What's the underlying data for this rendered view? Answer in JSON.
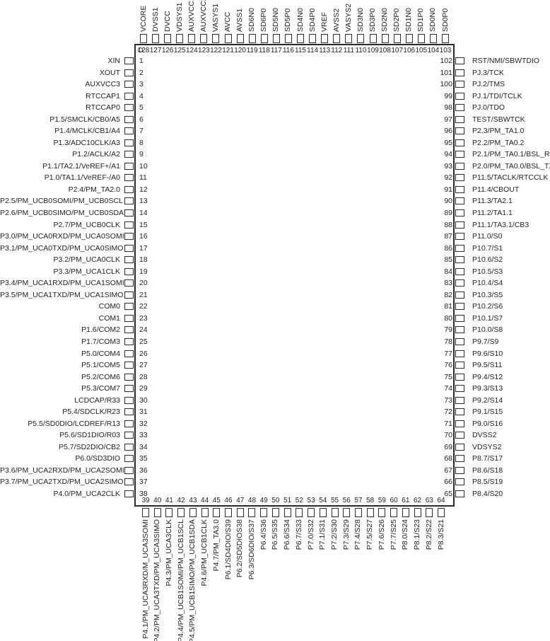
{
  "diagram": {
    "kind": "microcontroller-pinout",
    "background_color": "#ffffff",
    "line_color": "#2b2b2b",
    "pin1_marker": "circle"
  },
  "chip": {
    "top_pins": [
      {
        "num": "128",
        "label": "VCORE"
      },
      {
        "num": "127",
        "label": "DVSS1"
      },
      {
        "num": "126",
        "label": "DVCC"
      },
      {
        "num": "125",
        "label": "VDSYS1"
      },
      {
        "num": "124",
        "label": "AUXVCC1"
      },
      {
        "num": "123",
        "label": "AUXVCC2"
      },
      {
        "num": "122",
        "label": "VASYS1"
      },
      {
        "num": "121",
        "label": "AVCC"
      },
      {
        "num": "120",
        "label": "AVSS1"
      },
      {
        "num": "119",
        "label": "SD6N0"
      },
      {
        "num": "118",
        "label": "SD6P0"
      },
      {
        "num": "117",
        "label": "SD5N0"
      },
      {
        "num": "116",
        "label": "SD5P0"
      },
      {
        "num": "115",
        "label": "SD4N0"
      },
      {
        "num": "114",
        "label": "SD4P0"
      },
      {
        "num": "113",
        "label": "VREF"
      },
      {
        "num": "112",
        "label": "AVSS2"
      },
      {
        "num": "111",
        "label": "VASYS2"
      },
      {
        "num": "110",
        "label": "SD3N0"
      },
      {
        "num": "109",
        "label": "SD3P0"
      },
      {
        "num": "108",
        "label": "SD2N0"
      },
      {
        "num": "107",
        "label": "SD2P0"
      },
      {
        "num": "106",
        "label": "SD1N0"
      },
      {
        "num": "105",
        "label": "SD1P0"
      },
      {
        "num": "104",
        "label": "SD0N0"
      },
      {
        "num": "103",
        "label": "SD0P0"
      }
    ],
    "left_pins": [
      {
        "num": "1",
        "label": "XIN"
      },
      {
        "num": "2",
        "label": "XOUT"
      },
      {
        "num": "3",
        "label": "AUXVCC3"
      },
      {
        "num": "4",
        "label": "RTCCAP1"
      },
      {
        "num": "5",
        "label": "RTCCAP0"
      },
      {
        "num": "6",
        "label": "P1.5/SMCLK/CB0/A5"
      },
      {
        "num": "7",
        "label": "P1.4/MCLK/CB1/A4"
      },
      {
        "num": "8",
        "label": "P1.3/ADC10CLK/A3"
      },
      {
        "num": "9",
        "label": "P1.2/ACLK/A2"
      },
      {
        "num": "10",
        "label": "P1.1/TA2.1/VeREF+/A1"
      },
      {
        "num": "11",
        "label": "P1.0/TA1.1/VeREF-/A0"
      },
      {
        "num": "12",
        "label": "P2.4/PM_TA2.0"
      },
      {
        "num": "13",
        "label": "P2.5/PM_UCB0SOMI/PM_UCB0SCL"
      },
      {
        "num": "14",
        "label": "P2.6/PM_UCB0SIMO/PM_UCB0SDA"
      },
      {
        "num": "15",
        "label": "P2.7/PM_UCB0CLK"
      },
      {
        "num": "16",
        "label": "P3.0/PM_UCA0RXD/PM_UCA0SOMI"
      },
      {
        "num": "17",
        "label": "P3.1/PM_UCA0TXD/PM_UCA0SIMO"
      },
      {
        "num": "18",
        "label": "P3.2/PM_UCA0CLK"
      },
      {
        "num": "19",
        "label": "P3.3/PM_UCA1CLK"
      },
      {
        "num": "20",
        "label": "P3.4/PM_UCA1RXD/PM_UCA1SOMI"
      },
      {
        "num": "21",
        "label": "P3.5/PM_UCA1TXD/PM_UCA1SIMO"
      },
      {
        "num": "22",
        "label": "COM0"
      },
      {
        "num": "23",
        "label": "COM1"
      },
      {
        "num": "24",
        "label": "P1.6/COM2"
      },
      {
        "num": "25",
        "label": "P1.7/COM3"
      },
      {
        "num": "26",
        "label": "P5.0/COM4"
      },
      {
        "num": "27",
        "label": "P5.1/COM5"
      },
      {
        "num": "28",
        "label": "P5.2/COM6"
      },
      {
        "num": "29",
        "label": "P5.3/COM7"
      },
      {
        "num": "30",
        "label": "LCDCAP/R33"
      },
      {
        "num": "31",
        "label": "P5.4/SDCLK/R23"
      },
      {
        "num": "32",
        "label": "P5.5/SD0DIO/LCDREF/R13"
      },
      {
        "num": "33",
        "label": "P5.6/SD1DIO/R03"
      },
      {
        "num": "34",
        "label": "P5.7/SD2DIO/CB2"
      },
      {
        "num": "35",
        "label": "P6.0/SD3DIO"
      },
      {
        "num": "36",
        "label": "P3.6/PM_UCA2RXD/PM_UCA2SOMI"
      },
      {
        "num": "37",
        "label": "P3.7/PM_UCA2TXD/PM_UCA2SIMO"
      },
      {
        "num": "38",
        "label": "P4.0/PM_UCA2CLK"
      }
    ],
    "right_pins": [
      {
        "num": "102",
        "label": "RST/NMI/SBWTDIO"
      },
      {
        "num": "101",
        "label": "PJ.3/TCK"
      },
      {
        "num": "100",
        "label": "PJ.2/TMS"
      },
      {
        "num": "99",
        "label": "PJ.1/TDI/TCLK"
      },
      {
        "num": "98",
        "label": "PJ.0/TDO"
      },
      {
        "num": "97",
        "label": "TEST/SBWTCK"
      },
      {
        "num": "96",
        "label": "P2.3/PM_TA1.0"
      },
      {
        "num": "95",
        "label": "P2.2/PM_TA0.2"
      },
      {
        "num": "94",
        "label": "P2.1/PM_TA0.1/BSL_RX"
      },
      {
        "num": "93",
        "label": "P2.0/PM_TA0.0/BSL_TX"
      },
      {
        "num": "92",
        "label": "P11.5/TACLK/RTCCLK"
      },
      {
        "num": "91",
        "label": "P11.4/CBOUT"
      },
      {
        "num": "90",
        "label": "P11.3/TA2.1"
      },
      {
        "num": "89",
        "label": "P11.2/TA1.1"
      },
      {
        "num": "88",
        "label": "P11.1/TA3.1/CB3"
      },
      {
        "num": "87",
        "label": "P11.0/S0"
      },
      {
        "num": "86",
        "label": "P10.7/S1"
      },
      {
        "num": "85",
        "label": "P10.6/S2"
      },
      {
        "num": "84",
        "label": "P10.5/S3"
      },
      {
        "num": "83",
        "label": "P10.4/S4"
      },
      {
        "num": "82",
        "label": "P10.3/S5"
      },
      {
        "num": "81",
        "label": "P10.2/S6"
      },
      {
        "num": "80",
        "label": "P10.1/S7"
      },
      {
        "num": "79",
        "label": "P10.0/S8"
      },
      {
        "num": "78",
        "label": "P9.7/S9"
      },
      {
        "num": "77",
        "label": "P9.6/S10"
      },
      {
        "num": "76",
        "label": "P9.5/S11"
      },
      {
        "num": "75",
        "label": "P9.4/S12"
      },
      {
        "num": "74",
        "label": "P9.3/S13"
      },
      {
        "num": "73",
        "label": "P9.2/S14"
      },
      {
        "num": "72",
        "label": "P9.1/S15"
      },
      {
        "num": "71",
        "label": "P9.0/S16"
      },
      {
        "num": "70",
        "label": "DVSS2"
      },
      {
        "num": "69",
        "label": "VDSYS2"
      },
      {
        "num": "68",
        "label": "P8.7/S17"
      },
      {
        "num": "67",
        "label": "P8.6/S18"
      },
      {
        "num": "66",
        "label": "P8.5/S19"
      },
      {
        "num": "65",
        "label": "P8.4/S20"
      }
    ],
    "bottom_pins": [
      {
        "num": "39",
        "label": "P4.1/PM_UCA3RXD/M_UCA3SOMI"
      },
      {
        "num": "40",
        "label": "P4.2/PM_UCA3TXD/PM_UCA3SIMO"
      },
      {
        "num": "41",
        "label": "P4.3/PM_UCA3CLK"
      },
      {
        "num": "42",
        "label": "P4.4/PM_UCB1SOMI/PM_UCB1SCL"
      },
      {
        "num": "43",
        "label": "P4.5/PM_UCB1SIMO/PM_UCB1SDA"
      },
      {
        "num": "44",
        "label": "P4.6/PM_UCB1CLK"
      },
      {
        "num": "45",
        "label": "P4.7/PM_TA3.0"
      },
      {
        "num": "46",
        "label": "P6.1/SD4DIO/S39"
      },
      {
        "num": "47",
        "label": "P6.2/SD5DIOS38"
      },
      {
        "num": "48",
        "label": "P6.3/SD6DIO/S37"
      },
      {
        "num": "49",
        "label": "P6.4/S36"
      },
      {
        "num": "50",
        "label": "P6.5/S35"
      },
      {
        "num": "51",
        "label": "P6.6/S34"
      },
      {
        "num": "52",
        "label": "P6.7/S33"
      },
      {
        "num": "53",
        "label": "P7.0/S32"
      },
      {
        "num": "54",
        "label": "P7.1/S31"
      },
      {
        "num": "55",
        "label": "P7.2/S30"
      },
      {
        "num": "56",
        "label": "P7.3/S29"
      },
      {
        "num": "57",
        "label": "P7.4/S28"
      },
      {
        "num": "58",
        "label": "P7.5/S27"
      },
      {
        "num": "59",
        "label": "P7.6/S26"
      },
      {
        "num": "60",
        "label": "P7.7/S25"
      },
      {
        "num": "61",
        "label": "P8.0/S24"
      },
      {
        "num": "62",
        "label": "P8.1/S23"
      },
      {
        "num": "63",
        "label": "P8.2/S22"
      },
      {
        "num": "64",
        "label": "P8.3/S21"
      }
    ]
  }
}
